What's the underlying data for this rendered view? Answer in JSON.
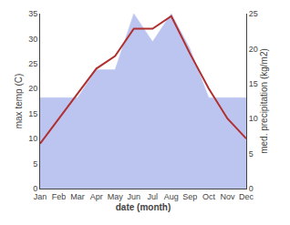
{
  "chart_data": {
    "type": "line",
    "xlabel": "date (month)",
    "ylabel": "max temp (C)",
    "y2label": "med. precipitation (kg/m2)",
    "categories": [
      "Jan",
      "Feb",
      "Mar",
      "Apr",
      "May",
      "Jun",
      "Jul",
      "Aug",
      "Sep",
      "Oct",
      "Nov",
      "Dec"
    ],
    "series": [
      {
        "type": "area",
        "axis": "y2",
        "color": "#bcc5f0",
        "values": [
          13.0,
          13.0,
          13.0,
          17.0,
          17.0,
          25.0,
          21.0,
          25.0,
          20.0,
          13.0,
          13.0,
          13.0
        ]
      },
      {
        "type": "line",
        "color": "#b03030",
        "values": [
          9.0,
          14.0,
          19.0,
          24.0,
          26.5,
          32.0,
          32.0,
          34.5,
          27.0,
          20.0,
          14.0,
          10.0
        ]
      }
    ],
    "ylim": [
      0,
      35
    ],
    "yticks": [
      0,
      5,
      10,
      15,
      20,
      25,
      30,
      35
    ],
    "y2lim": [
      0,
      25
    ],
    "y2ticks": [
      0,
      5,
      10,
      15,
      20,
      25
    ],
    "grid": false
  }
}
